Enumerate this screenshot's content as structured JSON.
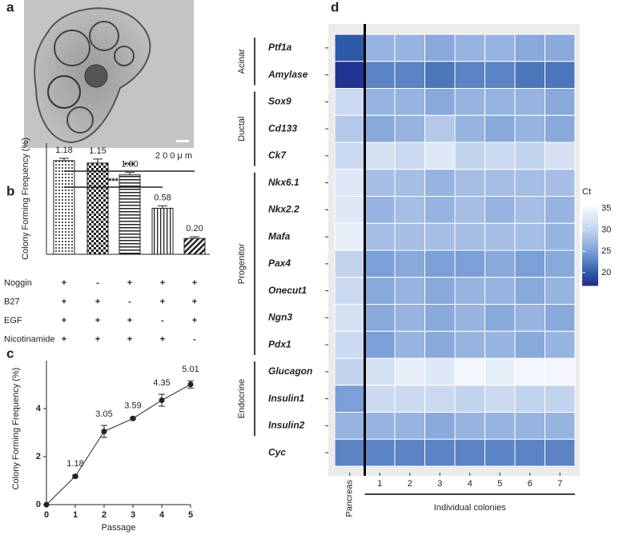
{
  "image": {
    "panel": "a",
    "scale_bar": "2 0 0 μ m"
  },
  "chart_data": [
    {
      "panel": "b",
      "type": "bar",
      "ylabel": "Colony Forming Frequency (%)",
      "values": [
        1.18,
        1.15,
        1.0,
        0.58,
        0.2
      ],
      "value_labels": [
        "1.18",
        "1.15",
        "1.00",
        "0.58",
        "0.20"
      ],
      "errors": [
        0.03,
        0.05,
        0.03,
        0.03,
        0.02
      ],
      "ylim": [
        0,
        1.4
      ],
      "color": "#222222",
      "significance": [
        {
          "from": 0,
          "to": 4,
          "label": "***"
        },
        {
          "from": 0,
          "to": 3,
          "label": "***"
        }
      ],
      "conditions": [
        {
          "name": "Noggin",
          "values": [
            "+",
            "-",
            "+",
            "+",
            "+"
          ]
        },
        {
          "name": "B27",
          "values": [
            "+",
            "+",
            "-",
            "+",
            "+"
          ]
        },
        {
          "name": "EGF",
          "values": [
            "+",
            "+",
            "+",
            "-",
            "+"
          ]
        },
        {
          "name": "Nicotinamide",
          "values": [
            "+",
            "+",
            "+",
            "+",
            "-"
          ]
        }
      ]
    },
    {
      "panel": "c",
      "type": "line",
      "xlabel": "Passage",
      "ylabel": "Colony Forming Frequency (%)",
      "x": [
        0,
        1,
        2,
        3,
        4,
        5
      ],
      "values": [
        0,
        1.18,
        3.05,
        3.59,
        4.35,
        5.01
      ],
      "value_labels": [
        null,
        "1.18",
        "3.05",
        "3.59",
        "4.35",
        "5.01"
      ],
      "errors": [
        0,
        0.05,
        0.25,
        0.05,
        0.25,
        0.15
      ],
      "xlim": [
        0,
        5
      ],
      "xticks": [
        0,
        1,
        2,
        3,
        4,
        5
      ],
      "ylim": [
        0,
        6
      ],
      "yticks": [
        0,
        2,
        4
      ],
      "color": "#222222"
    },
    {
      "panel": "d",
      "type": "heatmap",
      "legend_title": "Ct",
      "columns": [
        "Pancreas",
        "1",
        "2",
        "3",
        "4",
        "5",
        "6",
        "7"
      ],
      "column_groups": [
        {
          "label": "Individual colonies",
          "start": 1,
          "end": 7
        }
      ],
      "rows": [
        "Ptf1a",
        "Amylase",
        "Sox9",
        "Cd133",
        "Ck7",
        "Nkx6.1",
        "Nkx2.2",
        "Mafa",
        "Pax4",
        "Onecut1",
        "Ngn3",
        "Pdx1",
        "Glucagon",
        "Insulin1",
        "Insulin2",
        "Cyc"
      ],
      "row_groups": [
        {
          "label": "Acinar",
          "start": 0,
          "end": 1
        },
        {
          "label": "Ductal",
          "start": 2,
          "end": 4
        },
        {
          "label": "Progenitor",
          "start": 5,
          "end": 11
        },
        {
          "label": "Endocrine",
          "start": 12,
          "end": 14
        }
      ],
      "values": [
        [
          20,
          27,
          27,
          26,
          27,
          27,
          26,
          26
        ],
        [
          17.5,
          23,
          23,
          22,
          23,
          23,
          22,
          22
        ],
        [
          31,
          27,
          27,
          26,
          27,
          27,
          27,
          26
        ],
        [
          29,
          26,
          27,
          29,
          27,
          26,
          27,
          26
        ],
        [
          31,
          32,
          31,
          33,
          30,
          31,
          30,
          32
        ],
        [
          33,
          28,
          28,
          27,
          28,
          28,
          28,
          28
        ],
        [
          33,
          27,
          28,
          27,
          28,
          27,
          28,
          27
        ],
        [
          34,
          28,
          28,
          28,
          28,
          28,
          28,
          27
        ],
        [
          30,
          25,
          26,
          25,
          25,
          26,
          25,
          26
        ],
        [
          31,
          26,
          27,
          26,
          27,
          27,
          26,
          27
        ],
        [
          32,
          26,
          27,
          26,
          27,
          26,
          27,
          26
        ],
        [
          31,
          25,
          27,
          26,
          27,
          27,
          26,
          27
        ],
        [
          30,
          32,
          34,
          33,
          35,
          34,
          35,
          35
        ],
        [
          25,
          31,
          31,
          31,
          30,
          31,
          30,
          30
        ],
        [
          27,
          27,
          27,
          26,
          27,
          27,
          27,
          27
        ],
        [
          23,
          23,
          23,
          23,
          23,
          23,
          23,
          23
        ]
      ],
      "colorscale": [
        {
          "value": 17,
          "color": "#1f2b8c"
        },
        {
          "value": 20,
          "color": "#2d5aa8"
        },
        {
          "value": 25,
          "color": "#7b9fd6"
        },
        {
          "value": 30,
          "color": "#c2d3ee"
        },
        {
          "value": 35.5,
          "color": "#f7f9fd"
        }
      ],
      "clim": [
        17,
        35.5
      ],
      "cticks": [
        20,
        25,
        30,
        35
      ]
    }
  ]
}
